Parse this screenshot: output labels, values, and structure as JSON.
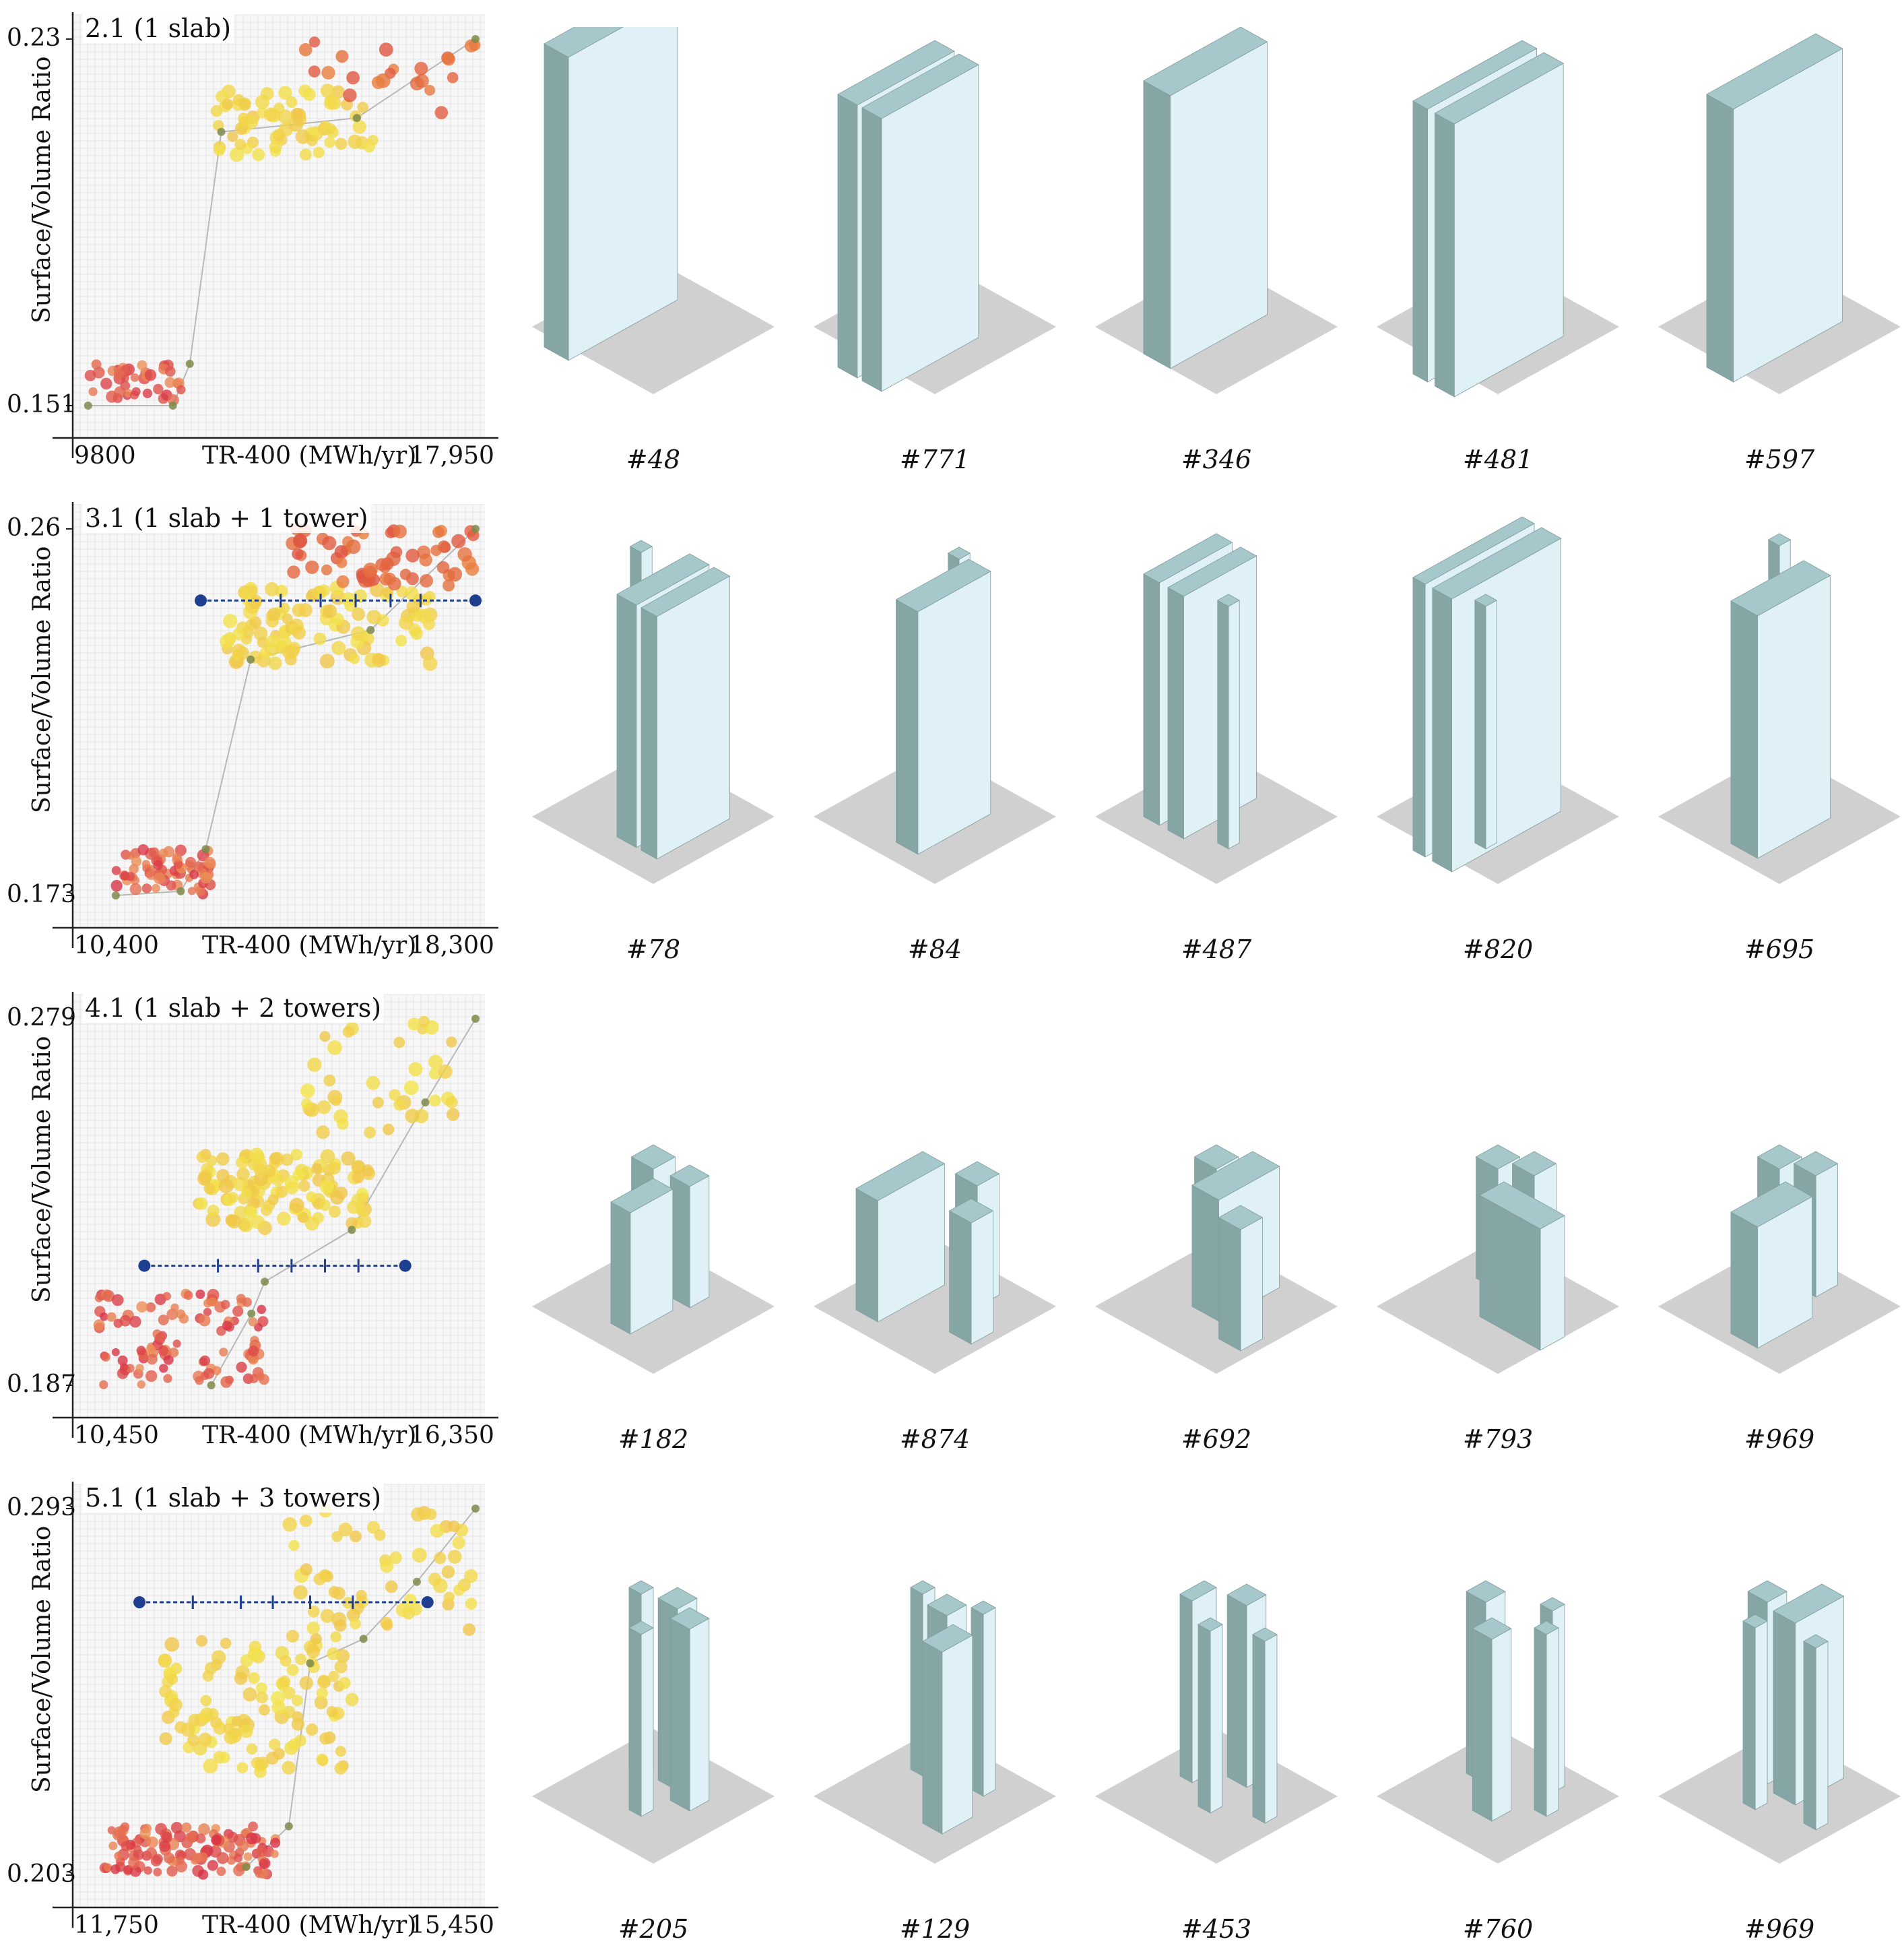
{
  "y_axis_label": "Surface/Volume Ratio",
  "x_axis_label": "TR-400 (MWh/yr)",
  "colors": {
    "building_dark": "#86a6a6",
    "building_light": "#dff0f7",
    "building_top": "#a7c8cb",
    "ground": "#d0d0d0",
    "range_bar": "#1e3f8f",
    "point_low": "#d72f45",
    "point_high": "#f2e34a",
    "grid": "#e6e6e6"
  },
  "rows": [
    {
      "chart_data": {
        "type": "scatter",
        "title": "2.1 (1 slab)",
        "xlabel": "TR-400 (MWh/yr)",
        "ylabel": "Surface/Volume Ratio",
        "x_tick_labels": [
          "9800",
          "17,950"
        ],
        "y_tick_labels": [
          "0.23",
          "0.151"
        ],
        "xlim": [
          9800,
          17950
        ],
        "ylim": [
          0.151,
          0.23
        ],
        "grid": true,
        "clusters": [
          {
            "x": [
              9950,
              11900
            ],
            "y": [
              0.151,
              0.16
            ],
            "n": 40,
            "color": "low"
          },
          {
            "x": [
              12600,
              15900
            ],
            "y": [
              0.205,
              0.219
            ],
            "n": 70,
            "color": "high"
          },
          {
            "x": [
              14000,
              17950
            ],
            "y": [
              0.214,
              0.23
            ],
            "n": 22,
            "color": "mid"
          }
        ],
        "pareto": {
          "x": [
            9950,
            11700,
            12050,
            12700,
            15500,
            17950
          ],
          "y": [
            0.151,
            0.151,
            0.16,
            0.21,
            0.213,
            0.23
          ]
        },
        "range_bar": null
      },
      "models": [
        {
          "label": "#48",
          "blocks": [
            {
              "x": 2,
              "y": 2,
              "w": 2,
              "d": 9,
              "h": 10
            }
          ]
        },
        {
          "label": "#771",
          "blocks": [
            {
              "x": 4,
              "y": 4,
              "w": 1.6,
              "d": 8,
              "h": 9
            },
            {
              "x": 6,
              "y": 4,
              "w": 1.6,
              "d": 8,
              "h": 9
            }
          ]
        },
        {
          "label": "#346",
          "blocks": [
            {
              "x": 4,
              "y": 2,
              "w": 2.2,
              "d": 8,
              "h": 9
            }
          ]
        },
        {
          "label": "#481",
          "blocks": [
            {
              "x": 5,
              "y": 3,
              "w": 1.2,
              "d": 9,
              "h": 9
            },
            {
              "x": 6.8,
              "y": 3,
              "w": 1.6,
              "d": 9,
              "h": 9
            }
          ]
        },
        {
          "label": "#597",
          "blocks": [
            {
              "x": 5,
              "y": 2,
              "w": 2.2,
              "d": 9,
              "h": 9
            }
          ]
        }
      ]
    },
    {
      "chart_data": {
        "type": "scatter",
        "title": "3.1 (1 slab + 1 tower)",
        "xlabel": "TR-400 (MWh/yr)",
        "ylabel": "Surface/Volume Ratio",
        "x_tick_labels": [
          "10,400",
          "18,300"
        ],
        "y_tick_labels": [
          "0.26",
          "0.173"
        ],
        "xlim": [
          10400,
          18300
        ],
        "ylim": [
          0.173,
          0.26
        ],
        "grid": true,
        "clusters": [
          {
            "x": [
              11100,
              13000
            ],
            "y": [
              0.173,
              0.184
            ],
            "n": 70,
            "color": "low"
          },
          {
            "x": [
              13300,
              17400
            ],
            "y": [
              0.228,
              0.246
            ],
            "n": 110,
            "color": "high"
          },
          {
            "x": [
              14600,
              18300
            ],
            "y": [
              0.246,
              0.26
            ],
            "n": 60,
            "color": "mid"
          }
        ],
        "pareto": {
          "x": [
            11100,
            12400,
            12900,
            13800,
            16200,
            18300
          ],
          "y": [
            0.173,
            0.174,
            0.184,
            0.229,
            0.236,
            0.26
          ]
        },
        "range_bar": {
          "y": 0.243,
          "x": [
            12800,
            18300
          ],
          "ticks": [
            14400,
            15200,
            15900,
            16600,
            17200
          ]
        }
      },
      "models": [
        {
          "label": "#78",
          "blocks": [
            {
              "x": 2,
              "y": 3,
              "w": 0.9,
              "d": 0.9,
              "h": 8
            },
            {
              "x": 5,
              "y": 2,
              "w": 1.6,
              "d": 6,
              "h": 8
            },
            {
              "x": 7,
              "y": 2,
              "w": 1.3,
              "d": 6,
              "h": 8
            }
          ]
        },
        {
          "label": "#84",
          "blocks": [
            {
              "x": 4,
              "y": 2,
              "w": 0.9,
              "d": 0.9,
              "h": 8
            },
            {
              "x": 5.3,
              "y": 2.5,
              "w": 1.8,
              "d": 6,
              "h": 8
            }
          ]
        },
        {
          "label": "#487",
          "blocks": [
            {
              "x": 2,
              "y": 2,
              "w": 1.3,
              "d": 6,
              "h": 8
            },
            {
              "x": 4,
              "y": 2,
              "w": 1.3,
              "d": 6,
              "h": 8
            },
            {
              "x": 7,
              "y": 6,
              "w": 0.9,
              "d": 0.9,
              "h": 8
            }
          ]
        },
        {
          "label": "#820",
          "blocks": [
            {
              "x": 4,
              "y": 2,
              "w": 1.0,
              "d": 9,
              "h": 9
            },
            {
              "x": 5.6,
              "y": 2,
              "w": 1.6,
              "d": 9,
              "h": 9
            },
            {
              "x": 6,
              "y": 7,
              "w": 0.9,
              "d": 0.9,
              "h": 8
            }
          ]
        },
        {
          "label": "#695",
          "blocks": [
            {
              "x": 2,
              "y": 2,
              "w": 0.9,
              "d": 0.9,
              "h": 8
            },
            {
              "x": 5,
              "y": 3,
              "w": 2.2,
              "d": 6,
              "h": 8
            }
          ]
        }
      ]
    },
    {
      "chart_data": {
        "type": "scatter",
        "title": "4.1 (1 slab + 2 towers)",
        "xlabel": "TR-400 (MWh/yr)",
        "ylabel": "Surface/Volume Ratio",
        "x_tick_labels": [
          "10,450",
          "16,350"
        ],
        "y_tick_labels": [
          "0.279",
          "0.187"
        ],
        "xlim": [
          10450,
          16350
        ],
        "ylim": [
          0.187,
          0.279
        ],
        "grid": true,
        "clusters": [
          {
            "x": [
              10700,
              13200
            ],
            "y": [
              0.187,
              0.21
            ],
            "n": 110,
            "color": "low"
          },
          {
            "x": [
              12200,
              14800
            ],
            "y": [
              0.226,
              0.245
            ],
            "n": 120,
            "color": "high"
          },
          {
            "x": [
              13800,
              16100
            ],
            "y": [
              0.25,
              0.279
            ],
            "n": 40,
            "color": "high"
          }
        ],
        "pareto": {
          "x": [
            12400,
            13000,
            13200,
            14500,
            15600,
            16350
          ],
          "y": [
            0.187,
            0.205,
            0.213,
            0.226,
            0.258,
            0.279
          ]
        },
        "range_bar": {
          "y": 0.217,
          "x": [
            11400,
            15300
          ],
          "ticks": [
            12500,
            13100,
            13600,
            14100,
            14600
          ]
        }
      },
      "models": [
        {
          "label": "#182",
          "blocks": [
            {
              "x": 2,
              "y": 2,
              "w": 1.8,
              "d": 1.8,
              "h": 4
            },
            {
              "x": 5,
              "y": 2,
              "w": 1.6,
              "d": 1.6,
              "h": 4
            },
            {
              "x": 4.5,
              "y": 4.5,
              "w": 1.6,
              "d": 3.5,
              "h": 4
            }
          ]
        },
        {
          "label": "#874",
          "blocks": [
            {
              "x": 5,
              "y": 1.5,
              "w": 1.8,
              "d": 1.8,
              "h": 4
            },
            {
              "x": 7.5,
              "y": 4.5,
              "w": 1.8,
              "d": 1.8,
              "h": 4
            },
            {
              "x": 2,
              "y": 3,
              "w": 1.8,
              "d": 5.5,
              "h": 4
            }
          ]
        },
        {
          "label": "#692",
          "blocks": [
            {
              "x": 2,
              "y": 2,
              "w": 1.8,
              "d": 1.8,
              "h": 4
            },
            {
              "x": 4,
              "y": 1,
              "w": 2.2,
              "d": 5,
              "h": 4
            },
            {
              "x": 7.5,
              "y": 5.5,
              "w": 1.8,
              "d": 1.8,
              "h": 4
            }
          ]
        },
        {
          "label": "#793",
          "blocks": [
            {
              "x": 2,
              "y": 2,
              "w": 1.8,
              "d": 1.8,
              "h": 4
            },
            {
              "x": 4,
              "y": 1,
              "w": 1.8,
              "d": 1.8,
              "h": 4
            },
            {
              "x": 5,
              "y": 4.5,
              "w": 5,
              "d": 2,
              "h": 4
            }
          ]
        },
        {
          "label": "#969",
          "blocks": [
            {
              "x": 2,
              "y": 2,
              "w": 1.8,
              "d": 1.8,
              "h": 4
            },
            {
              "x": 4,
              "y": 1,
              "w": 1.8,
              "d": 1.8,
              "h": 4
            },
            {
              "x": 5,
              "y": 4.5,
              "w": 2.2,
              "d": 4.5,
              "h": 4
            }
          ]
        }
      ]
    },
    {
      "chart_data": {
        "type": "scatter",
        "title": "5.1 (1 slab + 3 towers)",
        "xlabel": "TR-400 (MWh/yr)",
        "ylabel": "Surface/Volume Ratio",
        "x_tick_labels": [
          "11,750",
          "15,450"
        ],
        "y_tick_labels": [
          "0.293",
          "0.203"
        ],
        "xlim": [
          11750,
          15450
        ],
        "ylim": [
          0.203,
          0.293
        ],
        "grid": true,
        "clusters": [
          {
            "x": [
              11950,
              13600
            ],
            "y": [
              0.203,
              0.215
            ],
            "n": 120,
            "color": "low"
          },
          {
            "x": [
              12500,
              14300
            ],
            "y": [
              0.228,
              0.262
            ],
            "n": 120,
            "color": "high"
          },
          {
            "x": [
              13700,
              15450
            ],
            "y": [
              0.262,
              0.293
            ],
            "n": 60,
            "color": "high"
          }
        ],
        "pareto": {
          "x": [
            13300,
            13700,
            13900,
            14400,
            14900,
            15450
          ],
          "y": [
            0.205,
            0.215,
            0.255,
            0.261,
            0.275,
            0.293
          ]
        },
        "range_bar": {
          "y": 0.27,
          "x": [
            12300,
            15000
          ],
          "ticks": [
            12800,
            13250,
            13550,
            13900,
            14300
          ]
        }
      },
      "models": [
        {
          "label": "#205",
          "blocks": [
            {
              "x": 2,
              "y": 3,
              "w": 1.0,
              "d": 1.0,
              "h": 6
            },
            {
              "x": 4,
              "y": 2,
              "w": 1.6,
              "d": 1.6,
              "h": 6
            },
            {
              "x": 6,
              "y": 3,
              "w": 1.6,
              "d": 1.6,
              "h": 6
            },
            {
              "x": 5,
              "y": 6,
              "w": 1.0,
              "d": 1.0,
              "h": 6
            }
          ]
        },
        {
          "label": "#129",
          "blocks": [
            {
              "x": 2,
              "y": 3,
              "w": 1.0,
              "d": 1.0,
              "h": 6
            },
            {
              "x": 4,
              "y": 3,
              "w": 1.6,
              "d": 1.6,
              "h": 6
            },
            {
              "x": 6,
              "y": 2,
              "w": 1.0,
              "d": 1.0,
              "h": 6
            },
            {
              "x": 6.5,
              "y": 5,
              "w": 1.6,
              "d": 2.5,
              "h": 6
            }
          ]
        },
        {
          "label": "#453",
          "blocks": [
            {
              "x": 2,
              "y": 3,
              "w": 1.0,
              "d": 2.0,
              "h": 6
            },
            {
              "x": 4,
              "y": 1.5,
              "w": 1.6,
              "d": 1.6,
              "h": 6
            },
            {
              "x": 5,
              "y": 5.5,
              "w": 1.0,
              "d": 1.0,
              "h": 6
            },
            {
              "x": 8,
              "y": 4,
              "w": 1.0,
              "d": 1.0,
              "h": 6
            }
          ]
        },
        {
          "label": "#760",
          "blocks": [
            {
              "x": 2,
              "y": 3,
              "w": 1.6,
              "d": 1.6,
              "h": 6
            },
            {
              "x": 6,
              "y": 1.5,
              "w": 1.0,
              "d": 1.0,
              "h": 6
            },
            {
              "x": 5,
              "y": 5.5,
              "w": 1.6,
              "d": 1.6,
              "h": 6
            },
            {
              "x": 7.5,
              "y": 3.5,
              "w": 1.0,
              "d": 1.0,
              "h": 6
            }
          ]
        },
        {
          "label": "#969",
          "blocks": [
            {
              "x": 2,
              "y": 3,
              "w": 1.6,
              "d": 1.6,
              "h": 6
            },
            {
              "x": 4.5,
              "y": 1,
              "w": 1.8,
              "d": 4,
              "h": 6
            },
            {
              "x": 4,
              "y": 6,
              "w": 1.0,
              "d": 1.0,
              "h": 6
            },
            {
              "x": 8,
              "y": 5,
              "w": 1.0,
              "d": 1.0,
              "h": 6
            }
          ]
        }
      ]
    }
  ]
}
